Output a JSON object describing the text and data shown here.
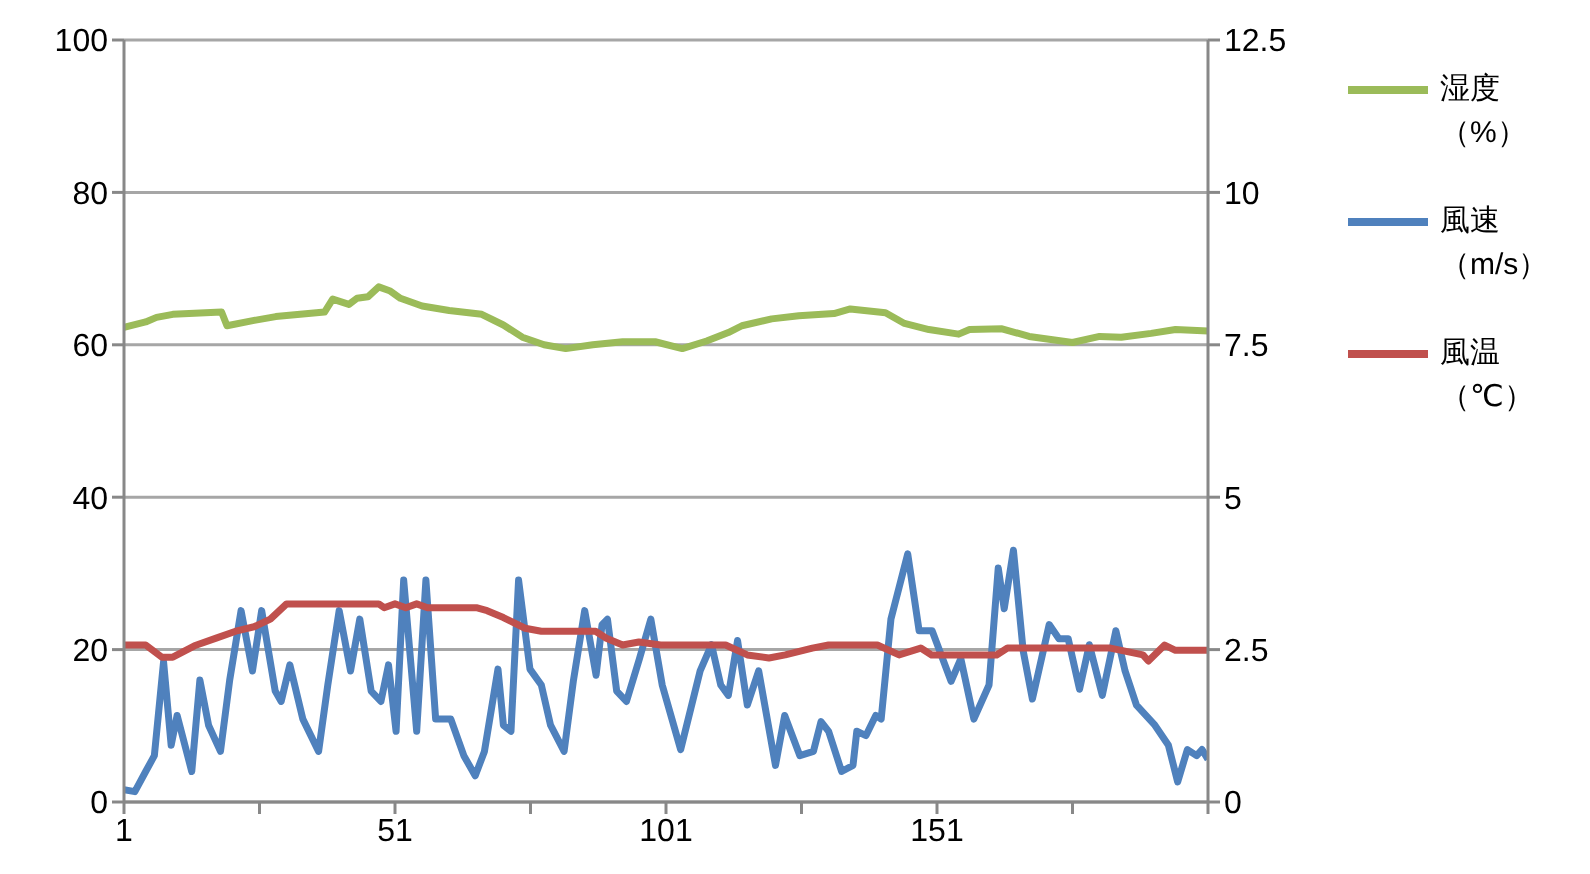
{
  "chart_data": {
    "type": "line",
    "xlim": [
      1,
      201
    ],
    "xticks": [
      1,
      {
        "value": 26,
        "label": null
      },
      51,
      {
        "value": 76,
        "label": null
      },
      101,
      {
        "value": 126,
        "label": null
      },
      151,
      {
        "value": 176,
        "label": null
      },
      {
        "value": 201,
        "label": null
      }
    ],
    "ylim": [
      0,
      100
    ],
    "yticks": [
      0,
      20,
      40,
      60,
      80,
      100
    ],
    "y2lim": [
      0,
      12.5
    ],
    "y2ticks": [
      0,
      2.5,
      5,
      7.5,
      10,
      12.5
    ],
    "grid": "y",
    "legend": "right",
    "marker": "none",
    "line_style": "solid",
    "series": [
      {
        "name": "湿度（%）",
        "color": "#9bbb59",
        "x": [
          1,
          5,
          7,
          10,
          19,
          20,
          25,
          29,
          38,
          39.5,
          42.5,
          44,
          46,
          48,
          50,
          52,
          56,
          61,
          67,
          71,
          74.5,
          78.5,
          82.5,
          87.5,
          93,
          99,
          104,
          108.5,
          112.5,
          115,
          120.5,
          125.5,
          132,
          135,
          141.5,
          145,
          149.5,
          155,
          157,
          163,
          168,
          176,
          181,
          185,
          190.5,
          195,
          201
        ],
        "values": [
          62.3,
          63,
          63.6,
          64,
          64.3,
          62.5,
          63.2,
          63.7,
          64.3,
          66,
          65.3,
          66.1,
          66.3,
          67.6,
          67.1,
          66.1,
          65.1,
          64.5,
          64,
          62.6,
          61,
          60,
          59.5,
          60,
          60.4,
          60.4,
          59.5,
          60.5,
          61.6,
          62.5,
          63.4,
          63.8,
          64.1,
          64.7,
          64.2,
          62.8,
          62,
          61.4,
          62,
          62.1,
          61.1,
          60.3,
          61.1,
          61,
          61.5,
          62,
          61.8
        ]
      },
      {
        "name": "風速（m/s）",
        "color": "#4f81bd",
        "axis": "y2",
        "x": [
          1,
          3,
          5,
          6.6,
          8.3,
          9.7,
          10.8,
          13.5,
          15,
          16.6,
          18.8,
          20.5,
          22.6,
          24.7,
          26.4,
          28.9,
          30,
          31.6,
          34,
          36.9,
          38.6,
          40.7,
          42.8,
          44.5,
          46.6,
          48.4,
          49.8,
          51.2,
          52.6,
          55,
          56.7,
          58.5,
          61.3,
          63.7,
          65.8,
          67.5,
          70,
          71,
          72.4,
          73.8,
          75.9,
          78,
          79.7,
          82.2,
          83.9,
          86,
          88.1,
          89.2,
          90.2,
          91.9,
          93.7,
          96.1,
          98.2,
          100.3,
          103.7,
          107.3,
          109.4,
          111.1,
          112.5,
          114.2,
          116,
          118.1,
          121.2,
          122.9,
          125.7,
          128.2,
          129.6,
          131,
          133.4,
          135.5,
          136.2,
          137.9,
          139.7,
          140.7,
          142.5,
          145.6,
          147.7,
          150.1,
          153.6,
          155.4,
          157.8,
          160.6,
          162.3,
          163.4,
          165.1,
          166.9,
          168.6,
          171.7,
          173.5,
          175.2,
          177.3,
          179.1,
          181.5,
          184,
          185.7,
          187.8,
          191.2,
          193.7,
          195.4,
          197.2,
          198.9,
          199.9,
          201
        ],
        "values": [
          0.2,
          0.17,
          0.5,
          0.76,
          2.3,
          0.93,
          1.42,
          0.5,
          2,
          1.26,
          0.83,
          2,
          3.14,
          2.15,
          3.14,
          1.82,
          1.65,
          2.25,
          1.36,
          0.83,
          1.92,
          3.14,
          2.15,
          3,
          1.82,
          1.65,
          2.25,
          1.16,
          3.64,
          1.16,
          3.64,
          1.36,
          1.36,
          0.76,
          0.43,
          0.83,
          2.18,
          1.26,
          1.16,
          3.64,
          2.18,
          1.92,
          1.26,
          0.83,
          1.98,
          3.14,
          2.08,
          2.91,
          3,
          1.82,
          1.65,
          2.35,
          3,
          1.92,
          0.86,
          2.15,
          2.58,
          1.92,
          1.75,
          2.65,
          1.59,
          2.15,
          0.6,
          1.42,
          0.76,
          0.83,
          1.32,
          1.16,
          0.5,
          0.6,
          1.16,
          1.09,
          1.42,
          1.36,
          3,
          4.07,
          2.81,
          2.81,
          1.98,
          2.35,
          1.36,
          1.92,
          3.84,
          3.17,
          4.13,
          2.48,
          1.69,
          2.91,
          2.68,
          2.68,
          1.85,
          2.58,
          1.75,
          2.81,
          2.15,
          1.59,
          1.26,
          0.93,
          0.33,
          0.86,
          0.76,
          0.86,
          0.7
        ]
      },
      {
        "name": "風温（℃）",
        "color": "#c0504d",
        "x": [
          1,
          5,
          8,
          10,
          14,
          18,
          22,
          25,
          28,
          31,
          48,
          49,
          51,
          53,
          55,
          57,
          66,
          68,
          71,
          75,
          78,
          88,
          90,
          93,
          96,
          100,
          112,
          116,
          120,
          123,
          128,
          131,
          140,
          144,
          148,
          150,
          162,
          164,
          183,
          189,
          190,
          193,
          195,
          201
        ],
        "values": [
          20.6,
          20.6,
          19,
          19,
          20.5,
          21.5,
          22.5,
          23,
          24,
          26,
          26,
          25.5,
          26,
          25.5,
          26,
          25.5,
          25.5,
          25.1,
          24.2,
          22.8,
          22.4,
          22.4,
          21.5,
          20.6,
          21,
          20.6,
          20.6,
          19.3,
          18.9,
          19.3,
          20.2,
          20.6,
          20.6,
          19.3,
          20.2,
          19.3,
          19.3,
          20.2,
          20.2,
          19.3,
          18.5,
          20.6,
          19.9,
          19.9
        ]
      }
    ]
  }
}
